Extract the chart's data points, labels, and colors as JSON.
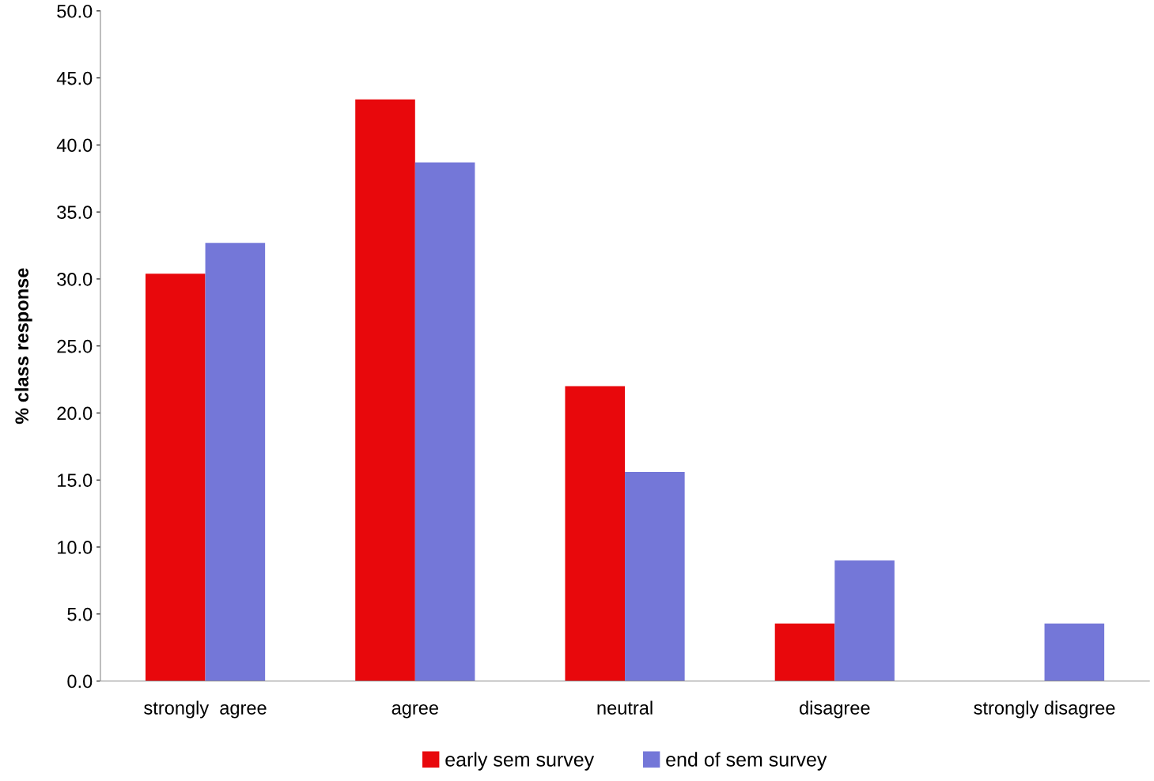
{
  "chart_data": {
    "type": "bar",
    "ylabel": "% class response",
    "categories": [
      "strongly  agree",
      "agree",
      "neutral",
      "disagree",
      "strongly disagree"
    ],
    "series": [
      {
        "name": "early sem survey",
        "color": "#e8080c",
        "values": [
          30.4,
          43.4,
          22.0,
          4.3,
          0
        ]
      },
      {
        "name": "end of sem survey",
        "color": "#7477d8",
        "values": [
          32.7,
          38.7,
          15.6,
          9.0,
          4.3
        ]
      }
    ],
    "ylim": [
      0,
      50
    ],
    "yticks": [
      {
        "value": 0,
        "label": "0.0"
      },
      {
        "value": 5,
        "label": "5.0"
      },
      {
        "value": 10,
        "label": "10.0"
      },
      {
        "value": 15,
        "label": "15.0"
      },
      {
        "value": 20,
        "label": "20.0"
      },
      {
        "value": 25,
        "label": "25.0"
      },
      {
        "value": 30,
        "label": "30.0"
      },
      {
        "value": 35,
        "label": "35.0"
      },
      {
        "value": 40,
        "label": "40.0"
      },
      {
        "value": 45,
        "label": "45.0"
      },
      {
        "value": 50,
        "label": "50.0"
      }
    ],
    "grid": false,
    "legend": "bottom"
  }
}
